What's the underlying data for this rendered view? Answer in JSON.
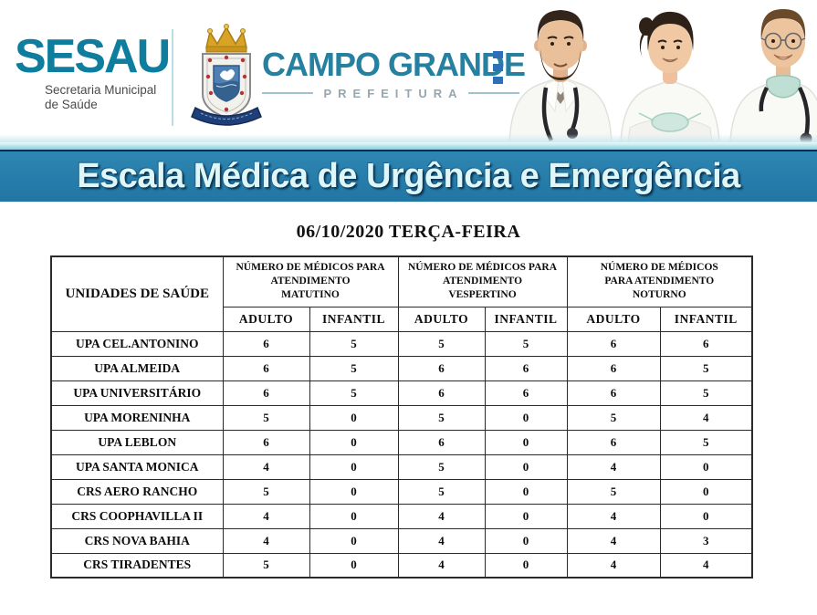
{
  "header": {
    "sesau": {
      "name": "SESAU",
      "subtitle_line1": "Secretaria Municipal",
      "subtitle_line2": "de Saúde"
    },
    "prefeitura": {
      "city": "CAMPO GRANDE",
      "label": "PREFEITURA"
    },
    "coat_of_arms_icon": "campo-grande-coat-of-arms-icon",
    "photo": "three-doctors-photo"
  },
  "banner": {
    "title": "Escala Médica de Urgência e Emergência"
  },
  "date_heading": "06/10/2020 TERÇA-FEIRA",
  "table": {
    "unit_column_header": "UNIDADES DE SAÚDE",
    "groups": [
      {
        "label": "NÚMERO DE MÉDICOS PARA\nATENDIMENTO\nMATUTINO"
      },
      {
        "label": "NÚMERO DE MÉDICOS PARA\nATENDIMENTO\nVESPERTINO"
      },
      {
        "label": "NÚMERO DE MÉDICOS\nPARA ATENDIMENTO\nNOTURNO"
      }
    ],
    "subheaders": [
      "ADULTO",
      "INFANTIL"
    ],
    "rows": [
      {
        "unit": "UPA CEL.ANTONINO",
        "values": [
          6,
          5,
          5,
          5,
          6,
          6
        ]
      },
      {
        "unit": "UPA ALMEIDA",
        "values": [
          6,
          5,
          6,
          6,
          6,
          5
        ]
      },
      {
        "unit": "UPA UNIVERSITÁRIO",
        "values": [
          6,
          5,
          6,
          6,
          6,
          5
        ]
      },
      {
        "unit": "UPA MORENINHA",
        "values": [
          5,
          0,
          5,
          0,
          5,
          4
        ]
      },
      {
        "unit": "UPA LEBLON",
        "values": [
          6,
          0,
          6,
          0,
          6,
          5
        ]
      },
      {
        "unit": "UPA SANTA MONICA",
        "values": [
          4,
          0,
          5,
          0,
          4,
          0
        ]
      },
      {
        "unit": "CRS AERO RANCHO",
        "values": [
          5,
          0,
          5,
          0,
          5,
          0
        ]
      },
      {
        "unit": "CRS COOPHAVILLA II",
        "values": [
          4,
          0,
          4,
          0,
          4,
          0
        ]
      },
      {
        "unit": "CRS NOVA BAHIA",
        "values": [
          4,
          0,
          4,
          0,
          4,
          3
        ]
      },
      {
        "unit": "CRS TIRADENTES",
        "values": [
          5,
          0,
          4,
          0,
          4,
          4
        ]
      }
    ]
  },
  "colors": {
    "brand-teal": "#0f7d9e",
    "cg-teal": "#26809f",
    "pref-gray": "#98a6ad",
    "banner-bg": "#2176a4",
    "banner-text": "#def6f8",
    "strip-cyan": "#86d0dd",
    "navy-line": "#0e2c4e",
    "table-border": "#2a2a2a"
  }
}
